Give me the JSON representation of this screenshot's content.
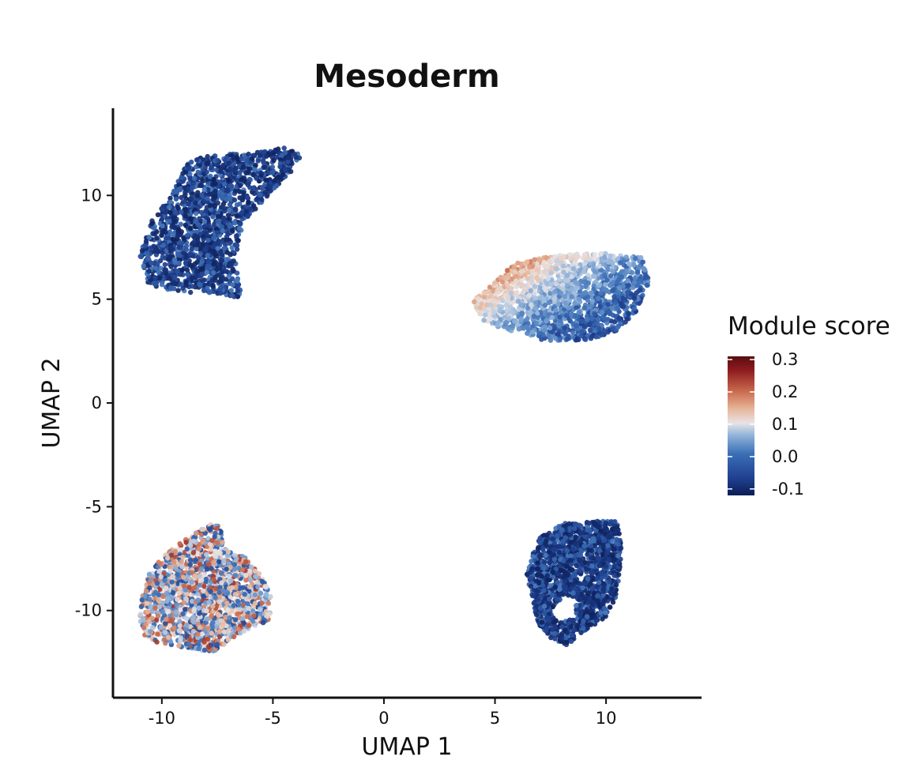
{
  "chart_data": {
    "type": "scatter",
    "title": "Mesoderm",
    "xlabel": "UMAP 1",
    "ylabel": "UMAP 2",
    "xlim": [
      -12.2,
      14.3
    ],
    "ylim": [
      -14.2,
      14.2
    ],
    "xticks": [
      -10,
      -5,
      0,
      5,
      10
    ],
    "yticks": [
      -10,
      -5,
      0,
      5,
      10
    ],
    "xtick_labels": [
      "-10",
      "-5",
      "0",
      "5",
      "10"
    ],
    "ytick_labels": [
      "-10",
      "-5",
      "0",
      "5",
      "10"
    ],
    "grid": false,
    "legend": {
      "title": "Module score",
      "placement": "right",
      "colormap": [
        "#0b1d55",
        "#1f3f8f",
        "#3b6fb6",
        "#8fb2d9",
        "#e8e3e6",
        "#e7b79a",
        "#c96a4f",
        "#8e1b1e",
        "#5a0d12"
      ],
      "min": -0.12,
      "max": 0.31,
      "ticks": [
        0.3,
        0.2,
        0.1,
        0.0,
        -0.1
      ],
      "tick_labels": [
        "0.3",
        "0.2",
        "0.1",
        "0.0",
        "-0.1"
      ]
    },
    "clusters": [
      {
        "outline": [
          [
            -6.5,
            12.0
          ],
          [
            -4.5,
            12.3
          ],
          [
            -3.7,
            12.0
          ],
          [
            -4.2,
            11.1
          ],
          [
            -5.2,
            10.0
          ],
          [
            -6.3,
            8.7
          ],
          [
            -6.7,
            7.0
          ],
          [
            -6.4,
            5.0
          ],
          [
            -7.6,
            5.3
          ],
          [
            -9.2,
            5.3
          ],
          [
            -10.6,
            5.7
          ],
          [
            -11.0,
            7.1
          ],
          [
            -10.5,
            8.7
          ],
          [
            -9.6,
            10.0
          ],
          [
            -8.9,
            11.6
          ],
          [
            -7.8,
            12.0
          ]
        ],
        "value_range": [
          -0.11,
          0.0
        ]
      },
      {
        "outline": [
          [
            6.5,
            6.9
          ],
          [
            8.5,
            7.2
          ],
          [
            10.0,
            7.2
          ],
          [
            11.6,
            7.0
          ],
          [
            12.0,
            5.8
          ],
          [
            11.3,
            4.3
          ],
          [
            10.5,
            3.5
          ],
          [
            9.2,
            3.0
          ],
          [
            7.3,
            3.0
          ],
          [
            6.2,
            3.3
          ],
          [
            5.3,
            3.6
          ],
          [
            4.4,
            4.0
          ],
          [
            4.0,
            5.0
          ],
          [
            5.0,
            5.8
          ],
          [
            5.8,
            6.7
          ]
        ],
        "value_range": [
          -0.05,
          0.3
        ]
      },
      {
        "outline": [
          [
            -8.5,
            -6.2
          ],
          [
            -7.8,
            -5.8
          ],
          [
            -7.3,
            -6.0
          ],
          [
            -7.2,
            -7.0
          ],
          [
            -6.3,
            -7.4
          ],
          [
            -5.6,
            -8.2
          ],
          [
            -5.0,
            -9.5
          ],
          [
            -5.2,
            -10.5
          ],
          [
            -6.8,
            -11.3
          ],
          [
            -7.6,
            -12.0
          ],
          [
            -9.3,
            -11.8
          ],
          [
            -10.7,
            -11.4
          ],
          [
            -11.0,
            -10.4
          ],
          [
            -10.8,
            -8.5
          ],
          [
            -9.7,
            -7.1
          ]
        ],
        "value_range": [
          -0.06,
          0.24
        ]
      },
      {
        "outline": [
          [
            7.0,
            -6.5
          ],
          [
            8.1,
            -5.8
          ],
          [
            9.5,
            -5.7
          ],
          [
            10.5,
            -5.7
          ],
          [
            10.7,
            -7.0
          ],
          [
            10.5,
            -9.2
          ],
          [
            10.0,
            -10.3
          ],
          [
            9.0,
            -11.0
          ],
          [
            8.2,
            -11.7
          ],
          [
            7.5,
            -11.3
          ],
          [
            6.9,
            -10.6
          ],
          [
            6.7,
            -9.4
          ],
          [
            6.4,
            -8.4
          ],
          [
            6.7,
            -7.3
          ]
        ],
        "hole": [
          [
            8.1,
            -9.2
          ],
          [
            8.7,
            -9.5
          ],
          [
            8.5,
            -10.4
          ],
          [
            7.9,
            -10.6
          ],
          [
            7.5,
            -10.1
          ]
        ],
        "value_range": [
          -0.11,
          0.0
        ]
      }
    ]
  }
}
